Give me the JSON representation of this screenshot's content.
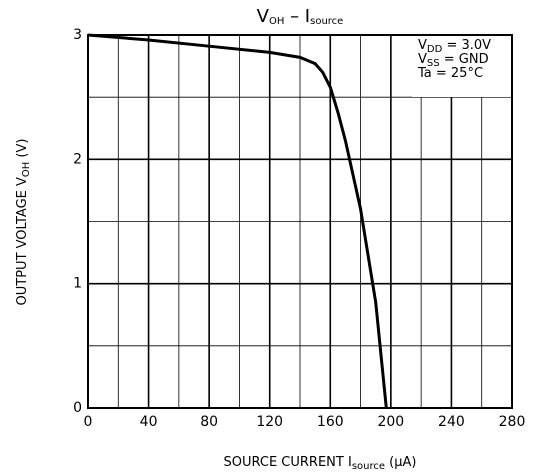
{
  "chart_data": {
    "type": "line",
    "title": [
      "V",
      "OH",
      " – I",
      "source"
    ],
    "x_label": [
      "SOURCE CURRENT  I",
      "source",
      "   (µA)"
    ],
    "y_label": [
      "OUTPUT VOLTAGE  V",
      "OH",
      "   (V)"
    ],
    "annotations": [
      [
        "V",
        "DD",
        " = 3.0V"
      ],
      [
        "V",
        "SS",
        " = GND"
      ],
      [
        "Ta = 25°C"
      ]
    ],
    "xlim": [
      0,
      280
    ],
    "ylim": [
      0,
      3
    ],
    "xticks": [
      0,
      40,
      80,
      120,
      160,
      200,
      240,
      280
    ],
    "yticks": [
      0,
      1,
      2,
      3
    ],
    "grid": true,
    "series": [
      {
        "color": "#000000",
        "x": [
          0,
          40,
          80,
          120,
          140,
          150,
          155,
          160,
          165,
          170,
          180,
          190,
          197
        ],
        "values": [
          3,
          2.96,
          2.91,
          2.86,
          2.82,
          2.77,
          2.7,
          2.58,
          2.38,
          2.15,
          1.6,
          0.85,
          0
        ]
      }
    ]
  }
}
